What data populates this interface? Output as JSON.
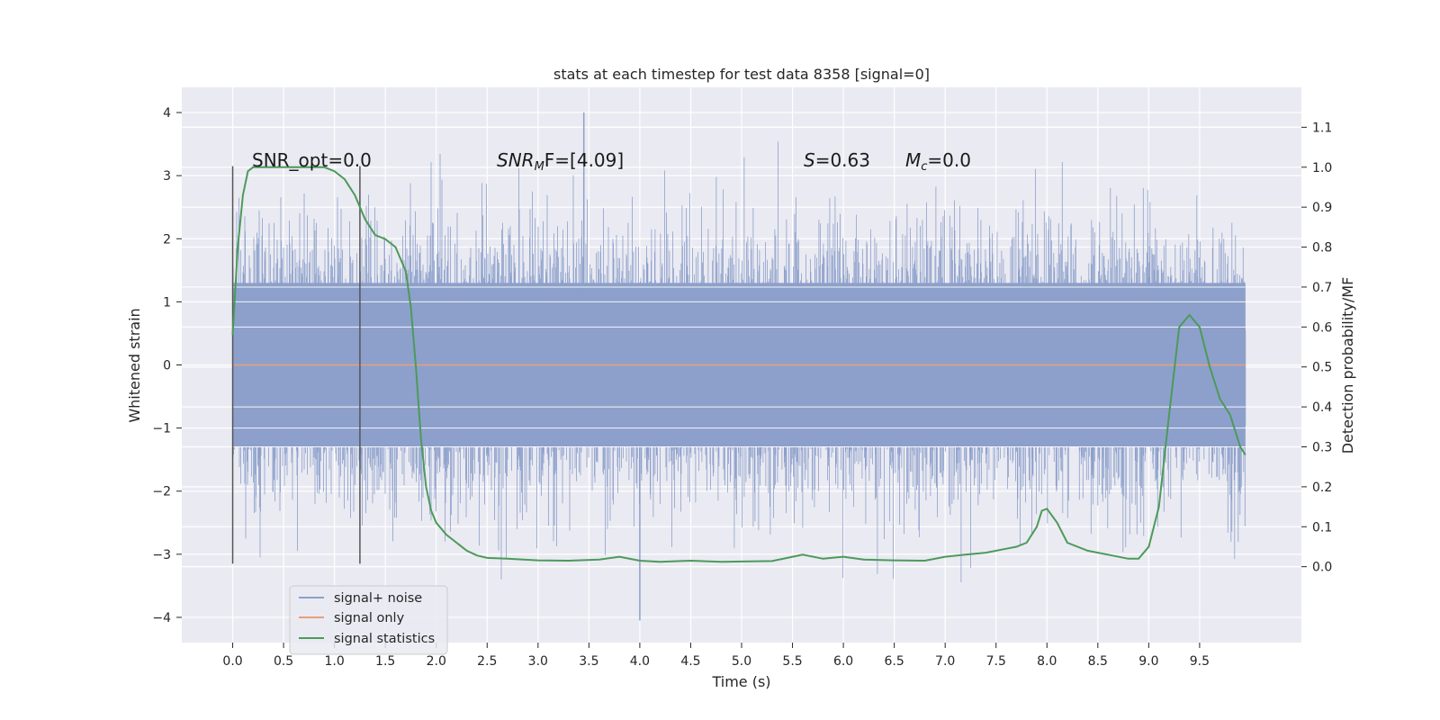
{
  "chart_data": {
    "type": "line",
    "title": "stats at each timestep for test data 8358 [signal=0]",
    "xlabel": "Time (s)",
    "ylabel": "Whitened strain",
    "y2label": "Detection probability/MF",
    "xlim": [
      -0.5,
      10.5
    ],
    "ylim": [
      -4.4,
      4.4
    ],
    "y2lim": [
      -0.19,
      1.2
    ],
    "x_ticks": [
      "0.0",
      "0.5",
      "1.0",
      "1.5",
      "2.0",
      "2.5",
      "3.0",
      "3.5",
      "4.0",
      "4.5",
      "5.0",
      "5.5",
      "6.0",
      "6.5",
      "7.0",
      "7.5",
      "8.0",
      "8.5",
      "9.0",
      "9.5"
    ],
    "y_ticks": [
      "4",
      "3",
      "2",
      "1",
      "0",
      "−1",
      "−2",
      "−3",
      "−4"
    ],
    "y2_ticks": [
      "1.1",
      "1.0",
      "0.9",
      "0.8",
      "0.7",
      "0.6",
      "0.5",
      "0.4",
      "0.3",
      "0.2",
      "0.1",
      "0.0"
    ],
    "grid": true,
    "legend_position": "lower-left",
    "series": [
      {
        "name": "signal+ noise",
        "color": "#8da0cb",
        "note": "dense whitened-strain noise, amplitude roughly ±1.3 with spikes up to about ±4",
        "t_start": 0.0,
        "t_end": 9.95,
        "max_value": 4.0,
        "min_value": -4.05
      },
      {
        "name": "signal only",
        "color": "#e8a07a",
        "x": [
          0.0,
          9.95
        ],
        "y": [
          0.0,
          0.0
        ]
      },
      {
        "name": "signal statistics",
        "color": "#4c9a5a",
        "axis": "right",
        "x": [
          0.0,
          0.05,
          0.1,
          0.15,
          0.2,
          0.3,
          0.5,
          0.7,
          0.9,
          1.0,
          1.1,
          1.2,
          1.3,
          1.4,
          1.5,
          1.6,
          1.7,
          1.75,
          1.8,
          1.85,
          1.9,
          1.95,
          2.0,
          2.1,
          2.2,
          2.3,
          2.4,
          2.5,
          2.7,
          3.0,
          3.3,
          3.6,
          3.8,
          4.0,
          4.2,
          4.5,
          4.8,
          5.0,
          5.3,
          5.6,
          5.8,
          6.0,
          6.2,
          6.5,
          6.8,
          7.0,
          7.2,
          7.4,
          7.6,
          7.7,
          7.8,
          7.9,
          7.95,
          8.0,
          8.1,
          8.2,
          8.4,
          8.6,
          8.8,
          8.9,
          9.0,
          9.1,
          9.2,
          9.3,
          9.4,
          9.5,
          9.6,
          9.7,
          9.8,
          9.9,
          9.95
        ],
        "y": [
          0.58,
          0.8,
          0.93,
          0.99,
          1.0,
          1.0,
          1.0,
          1.0,
          1.0,
          0.99,
          0.97,
          0.93,
          0.87,
          0.83,
          0.82,
          0.8,
          0.74,
          0.65,
          0.5,
          0.32,
          0.2,
          0.14,
          0.11,
          0.08,
          0.06,
          0.04,
          0.028,
          0.022,
          0.02,
          0.016,
          0.015,
          0.018,
          0.025,
          0.015,
          0.012,
          0.015,
          0.012,
          0.013,
          0.014,
          0.03,
          0.02,
          0.025,
          0.018,
          0.016,
          0.015,
          0.025,
          0.03,
          0.035,
          0.045,
          0.05,
          0.06,
          0.1,
          0.14,
          0.145,
          0.11,
          0.06,
          0.04,
          0.03,
          0.02,
          0.02,
          0.05,
          0.15,
          0.38,
          0.6,
          0.63,
          0.6,
          0.5,
          0.42,
          0.38,
          0.3,
          0.28
        ]
      }
    ],
    "vlines_x": [
      0.0,
      1.25
    ],
    "annotations": {
      "snr_opt": "SNR_opt=0.0",
      "snr_mf_base": "SNR",
      "snr_mf_sub": "M",
      "snr_mf_rest": "F=[4.09]",
      "s_base": "S",
      "s_rest": "=0.63",
      "mc_base": "M",
      "mc_sub": "c",
      "mc_rest": "=0.0"
    }
  }
}
